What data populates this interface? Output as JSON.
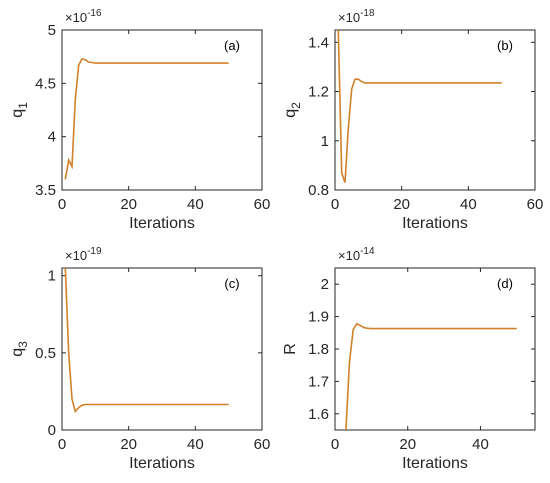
{
  "series_color": "#D2812B",
  "chart_data": [
    {
      "type": "line",
      "panel_label": "(a)",
      "ylabel_main": "q",
      "ylabel_sub": "1",
      "xlabel": "Iterations",
      "exponent": "-16",
      "xlim": [
        0,
        60
      ],
      "ylim": [
        3.5,
        5
      ],
      "xticks": [
        "0",
        "20",
        "40",
        "60"
      ],
      "yticks": [
        "3.5",
        "4",
        "4.5",
        "5"
      ],
      "x": [
        1,
        2,
        3,
        4,
        5,
        6,
        7,
        8,
        9,
        10,
        12,
        15,
        20,
        30,
        40,
        50
      ],
      "y": [
        3.6,
        3.78,
        3.72,
        4.35,
        4.67,
        4.73,
        4.72,
        4.7,
        4.695,
        4.69,
        4.69,
        4.69,
        4.69,
        4.69,
        4.69,
        4.69
      ]
    },
    {
      "type": "line",
      "panel_label": "(b)",
      "ylabel_main": "q",
      "ylabel_sub": "2",
      "xlabel": "Iterations",
      "exponent": "-18",
      "xlim": [
        0,
        60
      ],
      "ylim": [
        0.8,
        1.45
      ],
      "xticks": [
        "0",
        "20",
        "40",
        "60"
      ],
      "yticks": [
        "0.8",
        "1",
        "1.2",
        "1.4"
      ],
      "x": [
        1,
        2,
        3,
        4,
        5,
        6,
        7,
        8,
        9,
        10,
        12,
        15,
        20,
        30,
        40,
        50
      ],
      "y": [
        1.45,
        0.87,
        0.83,
        1.05,
        1.21,
        1.25,
        1.25,
        1.24,
        1.235,
        1.235,
        1.235,
        1.235,
        1.235,
        1.235,
        1.235,
        1.235
      ]
    },
    {
      "type": "line",
      "panel_label": "(c)",
      "ylabel_main": "q",
      "ylabel_sub": "3",
      "xlabel": "Iterations",
      "exponent": "-19",
      "xlim": [
        0,
        60
      ],
      "ylim": [
        0,
        1.05
      ],
      "xticks": [
        "0",
        "20",
        "40",
        "60"
      ],
      "yticks": [
        "0",
        "0.5",
        "1"
      ],
      "x": [
        1,
        2,
        3,
        4,
        5,
        6,
        7,
        8,
        10,
        15,
        20,
        30,
        40,
        50
      ],
      "y": [
        1.05,
        0.5,
        0.2,
        0.12,
        0.145,
        0.16,
        0.165,
        0.165,
        0.165,
        0.165,
        0.165,
        0.165,
        0.165,
        0.165
      ]
    },
    {
      "type": "line",
      "panel_label": "(d)",
      "ylabel_main": "R",
      "ylabel_sub": "",
      "xlabel": "Iterations",
      "exponent": "-14",
      "xlim": [
        0,
        55
      ],
      "ylim": [
        1.55,
        2.05
      ],
      "xticks": [
        "0",
        "20",
        "40"
      ],
      "yticks": [
        "1.6",
        "1.7",
        "1.8",
        "1.9",
        "2"
      ],
      "x": [
        3,
        4,
        5,
        6,
        7,
        8,
        9,
        10,
        12,
        15,
        20,
        30,
        40,
        50
      ],
      "y": [
        1.55,
        1.76,
        1.86,
        1.878,
        1.872,
        1.866,
        1.864,
        1.863,
        1.863,
        1.863,
        1.863,
        1.863,
        1.863,
        1.863
      ]
    }
  ]
}
